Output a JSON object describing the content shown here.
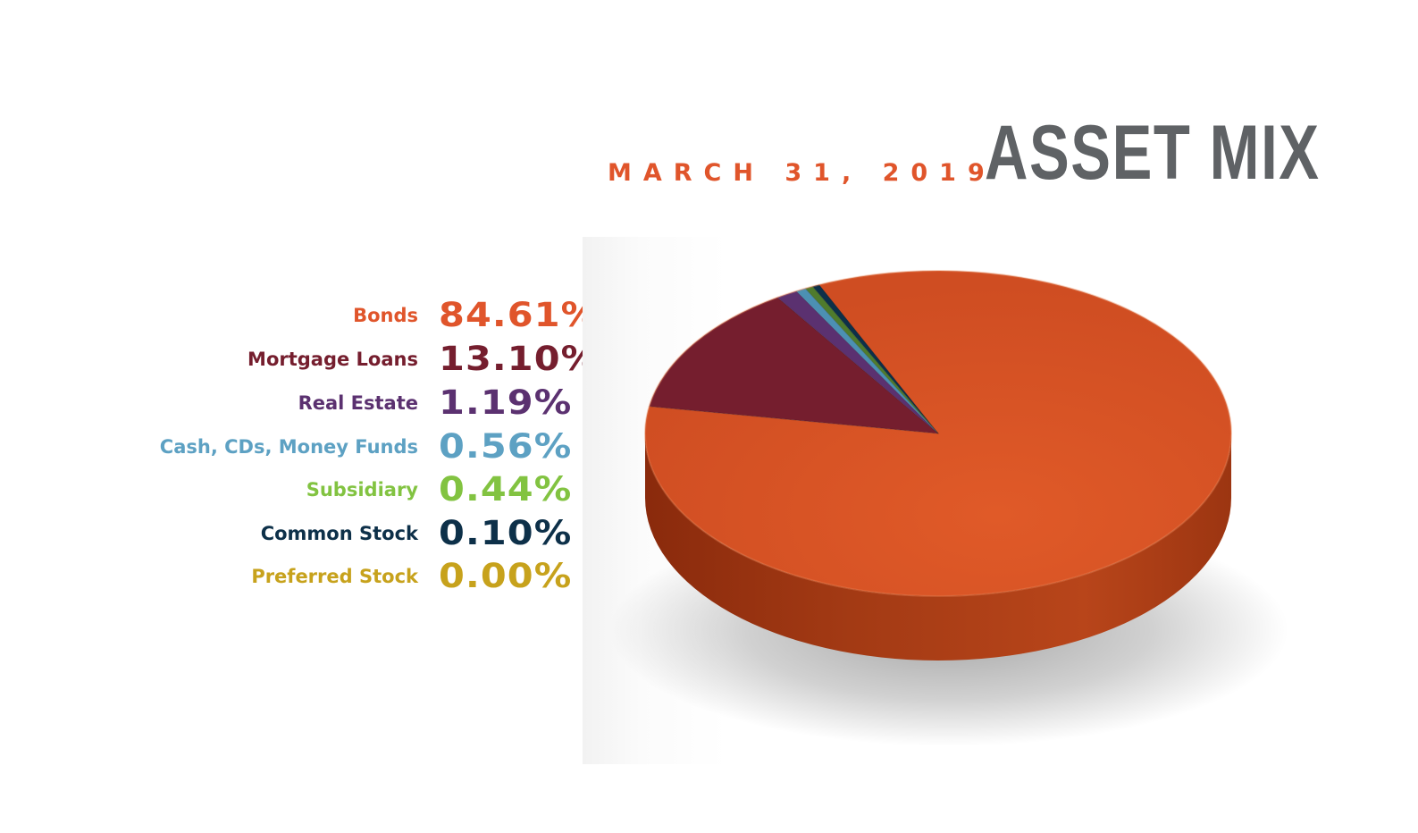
{
  "header": {
    "date": "MARCH 31, 2019",
    "title": "ASSET MIX"
  },
  "chart_data": {
    "type": "pie",
    "title": "ASSET MIX",
    "subtitle": "MARCH 31, 2019",
    "legend_placement": "left",
    "slices": [
      {
        "label": "Bonds",
        "value": 84.61,
        "display": "84.61%",
        "color": "#d04e24",
        "label_color": "#e0552b"
      },
      {
        "label": "Mortgage Loans",
        "value": 13.1,
        "display": "13.10%",
        "color": "#751e2e",
        "label_color": "#751e2e"
      },
      {
        "label": "Real Estate",
        "value": 1.19,
        "display": "1.19%",
        "color": "#5b3170",
        "label_color": "#5b3170"
      },
      {
        "label": "Cash, CDs, Money Funds",
        "value": 0.56,
        "display": "0.56%",
        "color": "#4c90b3",
        "label_color": "#5da1c3"
      },
      {
        "label": "Subsidiary",
        "value": 0.44,
        "display": "0.44%",
        "color": "#4f7b2c",
        "label_color": "#82c341"
      },
      {
        "label": "Common Stock",
        "value": 0.1,
        "display": "0.10%",
        "color": "#0d3049",
        "label_color": "#0d3049"
      },
      {
        "label": "Preferred Stock",
        "value": 0.0,
        "display": "0.00%",
        "color": "#c7a21c",
        "label_color": "#c7a21c"
      }
    ]
  }
}
